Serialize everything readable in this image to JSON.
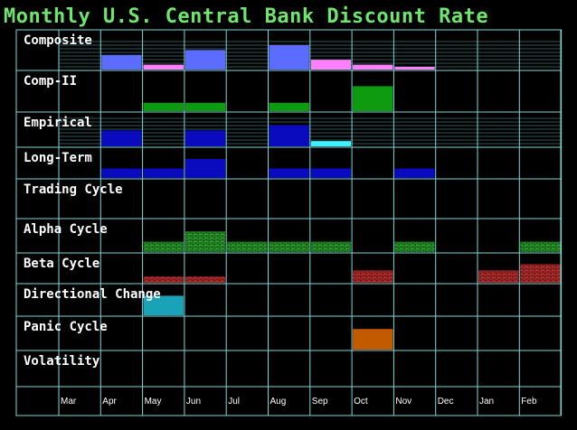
{
  "title": "Monthly U.S. Central Bank Discount Rate",
  "colors": {
    "background": "#000000",
    "title": "#6ee66e",
    "grid": "#7fd6d6",
    "composite": "#5b6cff",
    "composite_low": "#ff80ff",
    "comp2": "#0f9b0f",
    "empirical": "#0a0abf",
    "empirical_low": "#40f0ff",
    "long_term": "#0a0abf",
    "alpha": "#2ea62e",
    "beta": "#c43030",
    "directional": "#1aa2b8",
    "panic": "#c45a00"
  },
  "chart_data": {
    "type": "heatmap",
    "title": "Monthly U.S. Central Bank Discount Rate",
    "months": [
      "Mar",
      "Apr",
      "May",
      "Jun",
      "Jul",
      "Aug",
      "Sep",
      "Oct",
      "Nov",
      "Dec",
      "Jan",
      "Feb"
    ],
    "rows": [
      {
        "name": "Composite",
        "style": "bar",
        "values": [
          0,
          3,
          1,
          4,
          0,
          5,
          2,
          1,
          0.5,
          0,
          0,
          0
        ]
      },
      {
        "name": "Comp-II",
        "style": "bar",
        "values": [
          0,
          0,
          1,
          1,
          0,
          1,
          0,
          3,
          0,
          0,
          0,
          0
        ]
      },
      {
        "name": "Empirical",
        "style": "bar",
        "values": [
          0,
          3,
          0,
          3,
          0,
          4,
          1,
          0,
          0,
          0,
          0,
          0
        ]
      },
      {
        "name": "Long-Term",
        "style": "bar",
        "values": [
          0,
          1,
          1,
          2,
          0,
          1,
          1,
          0,
          1,
          0,
          0,
          0
        ]
      },
      {
        "name": "Trading Cycle",
        "style": "none",
        "values": [
          0,
          0,
          0,
          0,
          0,
          0,
          0,
          0,
          0,
          0,
          0,
          0
        ]
      },
      {
        "name": "Alpha Cycle",
        "style": "brick",
        "values": [
          0,
          0,
          1,
          2,
          1,
          1,
          1,
          0,
          1,
          0,
          0,
          1
        ]
      },
      {
        "name": "Beta Cycle",
        "style": "brick",
        "values": [
          0,
          0,
          1,
          1,
          0,
          0,
          0,
          2,
          0,
          0,
          2,
          3
        ]
      },
      {
        "name": "Directional Change",
        "style": "bar",
        "values": [
          0,
          0,
          2,
          0,
          0,
          0,
          0,
          0,
          0,
          0,
          0,
          0
        ]
      },
      {
        "name": "Panic Cycle",
        "style": "bar",
        "values": [
          0,
          0,
          0,
          0,
          0,
          0,
          0,
          2,
          0,
          0,
          0,
          0
        ]
      },
      {
        "name": "Volatility",
        "style": "none",
        "values": [
          0,
          0,
          0,
          0,
          0,
          0,
          0,
          0,
          0,
          0,
          0,
          0
        ]
      }
    ]
  }
}
